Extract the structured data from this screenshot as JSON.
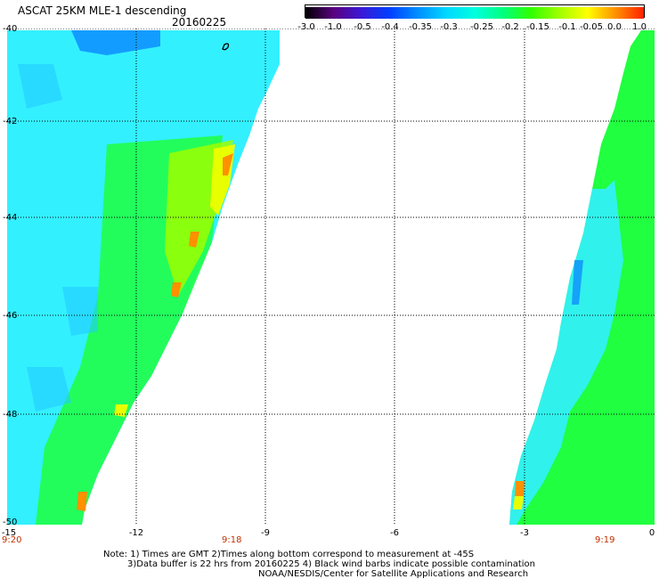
{
  "header": {
    "title": "ASCAT 25KM MLE-1 descending",
    "date": "20160225"
  },
  "colorbar": {
    "labels": [
      "-3.0",
      "-1.0",
      "-0.5",
      "-0.4",
      "-0.35",
      "-0.3",
      "-0.25",
      "-0.2",
      "-0.15",
      "-0.1",
      "-0.05",
      "0.0",
      "1.0"
    ],
    "colors": [
      "#000000",
      "#5a0080",
      "#3a1ad8",
      "#0040ff",
      "#0090ff",
      "#00d8ff",
      "#00ffe0",
      "#00ff80",
      "#30ff00",
      "#a0ff00",
      "#ffff00",
      "#ff9000",
      "#ff2000"
    ]
  },
  "map": {
    "lat_labels": [
      "-40",
      "-42",
      "-44",
      "-46",
      "-48",
      "-50"
    ],
    "lon_labels": [
      "-15",
      "-12",
      "-9",
      "-6",
      "-3",
      "0"
    ],
    "time_labels": [
      "9:20",
      "9:18",
      "9:19"
    ],
    "swath_colors": {
      "cyan": "#00ffe8",
      "light_cyan": "#33f0ff",
      "blue": "#0060ff",
      "green": "#20ff40",
      "bright_green": "#00ff00",
      "yellow": "#e8ff00",
      "orange": "#ff9000"
    }
  },
  "notes": {
    "line1": "Note: 1) Times are GMT  2)Times along bottom correspond to measurement at -45S",
    "line2": "3)Data buffer is 22 hrs from 20160225  4) Black wind barbs indicate possible contamination",
    "line3": "NOAA/NESDIS/Center for Satellite Applications and Research"
  }
}
